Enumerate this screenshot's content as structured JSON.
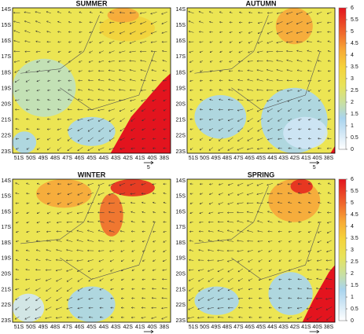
{
  "panels": [
    {
      "title": "SUMMER"
    },
    {
      "title": "AUTUMN"
    },
    {
      "title": "WINTER"
    },
    {
      "title": "SPRING"
    }
  ],
  "y_axis_labels": [
    "14S",
    "15S",
    "16S",
    "17S",
    "18S",
    "19S",
    "20S",
    "21S",
    "22S",
    "23S"
  ],
  "x_axis_labels": [
    "51S",
    "50S",
    "49S",
    "48S",
    "47S",
    "46S",
    "45S",
    "44S",
    "43S",
    "42S",
    "41S",
    "40S",
    "38S"
  ],
  "reference_vector_label": "5",
  "colorbar_ticks": [
    0,
    0.5,
    1,
    1.5,
    2,
    2.5,
    3,
    3.5,
    4,
    4.5,
    5,
    5.5,
    6
  ]
}
